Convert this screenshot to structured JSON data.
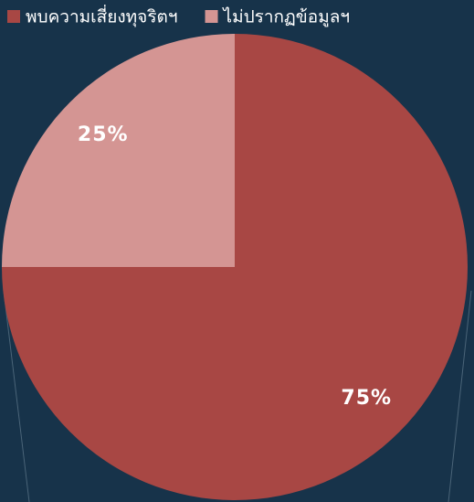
{
  "chart_data": {
    "type": "pie",
    "categories": [
      "พบความเสี่ยงทุจริตฯ",
      "ไม่ปรากฏข้อมูลฯ"
    ],
    "values": [
      75,
      25
    ],
    "value_labels": [
      "75%",
      "25%"
    ],
    "colors": [
      "#a84744",
      "#d49593"
    ],
    "legend": "top-left"
  }
}
